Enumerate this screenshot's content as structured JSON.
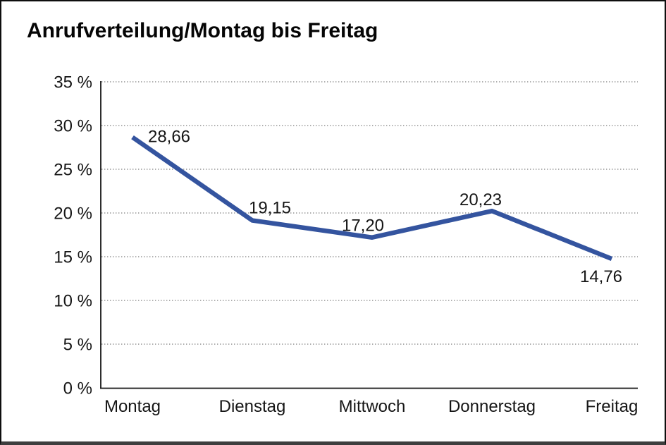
{
  "title": "Anrufverteilung/Montag bis Freitag",
  "colors": {
    "line": "#34549f",
    "grid": "#7e7e7e",
    "axis": "#161616",
    "text": "#161616",
    "frame_border": "#0e0e0e",
    "frame_bottom_bar": "#3e3e3e"
  },
  "chart_data": {
    "type": "line",
    "title": "Anrufverteilung/Montag bis Freitag",
    "categories": [
      "Montag",
      "Dienstag",
      "Mittwoch",
      "Donnerstag",
      "Freitag"
    ],
    "values": [
      28.66,
      19.15,
      17.2,
      20.23,
      14.76
    ],
    "value_labels": [
      "28,66",
      "19,15",
      "17,20",
      "20,23",
      "14,76"
    ],
    "y_ticks": [
      0,
      5,
      10,
      15,
      20,
      25,
      30,
      35
    ],
    "y_tick_labels": [
      "0 %",
      "5 %",
      "10 %",
      "15 %",
      "20 %",
      "25 %",
      "30 %",
      "35 %"
    ],
    "xlabel": "",
    "ylabel": "",
    "ylim": [
      0,
      35
    ],
    "grid": "horizontal-dotted",
    "legend": "none",
    "line_color": "#34549f"
  }
}
